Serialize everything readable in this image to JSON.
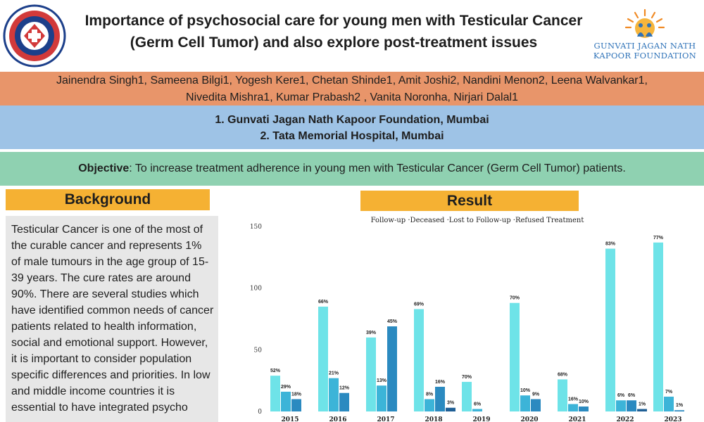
{
  "header": {
    "title_line1": "Importance of psychosocial care for young men with Testicular Cancer",
    "title_line2": "(Germ Cell Tumor) and also explore post-treatment issues",
    "org_name_line1": "GUNVATI JAGAN NATH",
    "org_name_line2": "KAPOOR FOUNDATION",
    "colors": {
      "brand_blue": "#2e72b8",
      "brand_orange": "#f08a24"
    }
  },
  "authors": {
    "line1": "Jainendra Singh1, Sameena Bilgi1, Yogesh Kere1, Chetan Shinde1, Amit Joshi2, Nandini Menon2, Leena Walvankar1,",
    "line2": "Nivedita Mishra1, Kumar Prabash2 , Vanita Noronha, Nirjari Dalal1"
  },
  "affiliations": {
    "line1": "1. Gunvati Jagan Nath Kapoor Foundation, Mumbai",
    "line2": "2. Tata Memorial Hospital, Mumbai"
  },
  "objective": {
    "label": "Objective",
    "text": ": To increase treatment adherence in young men with Testicular Cancer (Germ Cell Tumor) patients."
  },
  "background": {
    "heading": "Background",
    "text": "Testicular Cancer is one of the most of the curable cancer and represents 1% of male tumours in the age group of 15-39 years. The cure rates are around 90%. There are several studies which have identified common needs of cancer patients related to health information, social and emotional support. However, it is important to consider population specific differences and priorities. In low and middle income countries it is essential to have integrated psycho"
  },
  "result": {
    "heading": "Result"
  },
  "chart_data": {
    "type": "bar",
    "legend": [
      "Follow-up",
      "Deceased",
      "Lost to Follow-up",
      "Refused Treatment"
    ],
    "legend_position": "top",
    "categories": [
      "2015",
      "2016",
      "2017",
      "2018",
      "2019",
      "2020",
      "2021",
      "2022",
      "2023"
    ],
    "yticks": [
      0,
      50,
      100,
      150
    ],
    "ylim": [
      0,
      150
    ],
    "grid": false,
    "colors": [
      "#6ee3e8",
      "#3cb4d8",
      "#2b8ac0",
      "#1f5f95"
    ],
    "groups": [
      {
        "values": [
          29,
          16,
          10
        ],
        "labels": [
          "52%",
          "29%",
          "18%"
        ]
      },
      {
        "values": [
          85,
          27,
          15
        ],
        "labels": [
          "66%",
          "21%",
          "12%"
        ]
      },
      {
        "values": [
          60,
          21,
          69
        ],
        "labels": [
          "39%",
          "13%",
          "45%"
        ]
      },
      {
        "values": [
          83,
          10,
          20,
          3
        ],
        "labels": [
          "69%",
          "8%",
          "16%",
          "3%"
        ]
      },
      {
        "values": [
          24,
          2
        ],
        "labels": [
          "70%",
          "6%"
        ]
      },
      {
        "values": [
          88,
          13,
          10
        ],
        "labels": [
          "70%",
          "10%",
          "9%"
        ]
      },
      {
        "values": [
          26,
          6,
          4
        ],
        "labels": [
          "68%",
          "16%",
          "10%"
        ]
      },
      {
        "values": [
          132,
          9,
          9,
          2
        ],
        "labels": [
          "83%",
          "6%",
          "6%",
          "1%"
        ]
      },
      {
        "values": [
          137,
          12,
          1
        ],
        "labels": [
          "77%",
          "7%",
          "1%"
        ]
      }
    ]
  }
}
